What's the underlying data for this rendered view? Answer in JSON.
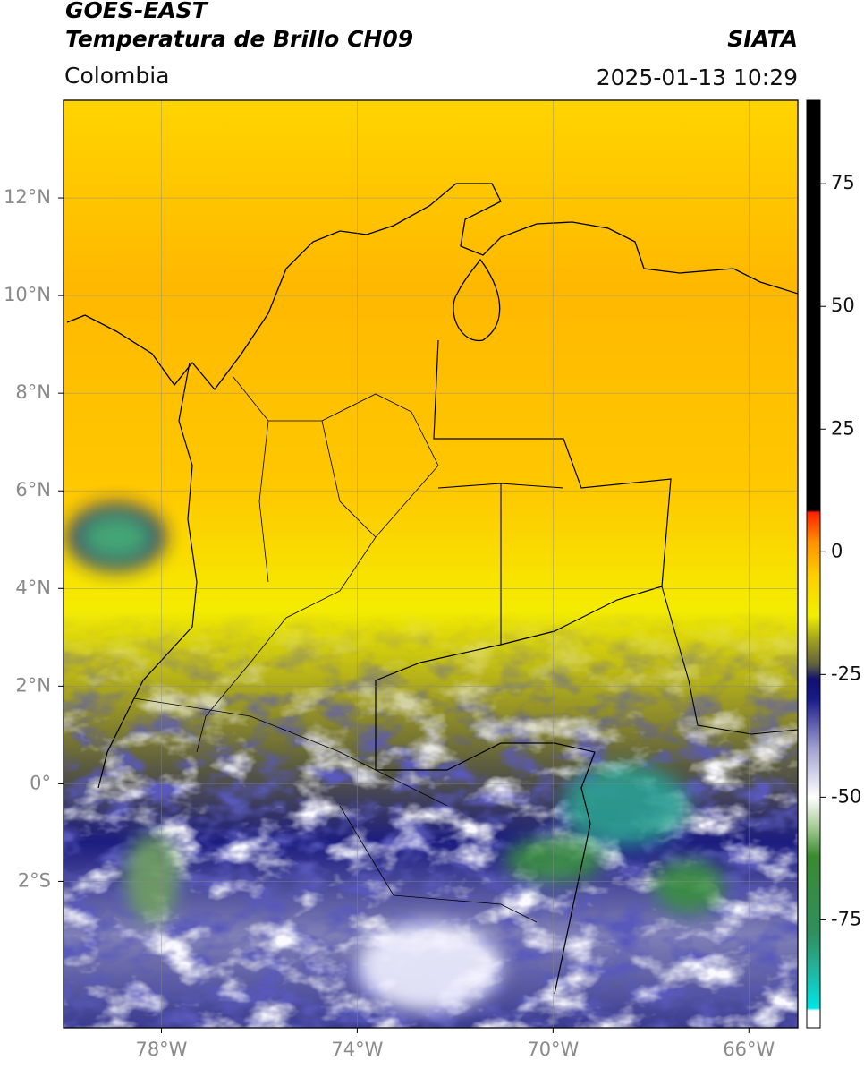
{
  "header": {
    "title": "GOES-EAST",
    "subtitle": "Temperatura de Brillo CH09",
    "region": "Colombia",
    "source": "SIATA",
    "datetime": "2025-01-13 10:29"
  },
  "map": {
    "xlim": [
      -80,
      -65
    ],
    "ylim": [
      -5,
      14
    ],
    "xticks": [
      {
        "value": -78,
        "label": "78°W"
      },
      {
        "value": -74,
        "label": "74°W"
      },
      {
        "value": -70,
        "label": "70°W"
      },
      {
        "value": -66,
        "label": "66°W"
      }
    ],
    "yticks": [
      {
        "value": 12,
        "label": "12°N"
      },
      {
        "value": 10,
        "label": "10°N"
      },
      {
        "value": 8,
        "label": "8°N"
      },
      {
        "value": 6,
        "label": "6°N"
      },
      {
        "value": 4,
        "label": "4°N"
      },
      {
        "value": 2,
        "label": "2°N"
      },
      {
        "value": 0,
        "label": "0°"
      },
      {
        "value": -2,
        "label": "2°S"
      }
    ],
    "grid": true
  },
  "colorbar": {
    "lim": [
      -97,
      92
    ],
    "ticks": [
      75,
      50,
      25,
      0,
      -25,
      -50,
      -75
    ],
    "stops": [
      {
        "value": -97,
        "color": "#ffffff"
      },
      {
        "value": -93.5,
        "color": "#ffffff"
      },
      {
        "value": -93,
        "color": "#00e5e5"
      },
      {
        "value": -85,
        "color": "#22b49c"
      },
      {
        "value": -78,
        "color": "#2f8f60"
      },
      {
        "value": -62,
        "color": "#3a8a30"
      },
      {
        "value": -56,
        "color": "#a8cc98"
      },
      {
        "value": -50,
        "color": "#ffffff"
      },
      {
        "value": -40,
        "color": "#a0a0d0"
      },
      {
        "value": -30,
        "color": "#1a1a8a"
      },
      {
        "value": -26,
        "color": "#101070"
      },
      {
        "value": -23,
        "color": "#606040"
      },
      {
        "value": -18,
        "color": "#a0a020"
      },
      {
        "value": -13,
        "color": "#f0f000"
      },
      {
        "value": -5,
        "color": "#ffd000"
      },
      {
        "value": 2,
        "color": "#ff9000"
      },
      {
        "value": 8,
        "color": "#ff2000"
      },
      {
        "value": 8.5,
        "color": "#000000"
      },
      {
        "value": 92,
        "color": "#000000"
      }
    ]
  }
}
